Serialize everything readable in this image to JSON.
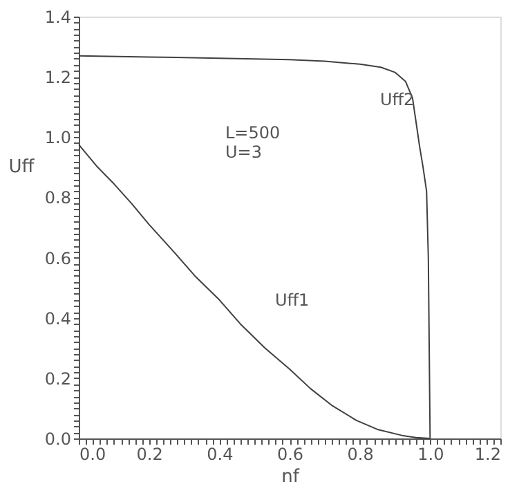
{
  "chart_data": {
    "type": "line",
    "xlabel": "nf",
    "ylabel": "Uff",
    "xlim": [
      0,
      1.2
    ],
    "ylim": [
      0,
      1.4
    ],
    "grid": false,
    "legend": false,
    "marker": "none",
    "line_style": "solid",
    "xticks": [
      {
        "value": 0,
        "label": "0.0"
      },
      {
        "value": 0.02,
        "label": null
      },
      {
        "value": 0.04,
        "label": null
      },
      {
        "value": 0.06,
        "label": null
      },
      {
        "value": 0.08,
        "label": null
      },
      {
        "value": 0.1,
        "label": null
      },
      {
        "value": 0.12,
        "label": null
      },
      {
        "value": 0.14,
        "label": null
      },
      {
        "value": 0.16,
        "label": null
      },
      {
        "value": 0.18,
        "label": null
      },
      {
        "value": 0.2,
        "label": "0.2"
      },
      {
        "value": 0.22,
        "label": null
      },
      {
        "value": 0.24,
        "label": null
      },
      {
        "value": 0.26,
        "label": null
      },
      {
        "value": 0.28,
        "label": null
      },
      {
        "value": 0.3,
        "label": null
      },
      {
        "value": 0.32,
        "label": null
      },
      {
        "value": 0.34,
        "label": null
      },
      {
        "value": 0.36,
        "label": null
      },
      {
        "value": 0.38,
        "label": null
      },
      {
        "value": 0.4,
        "label": "0.4"
      },
      {
        "value": 0.42,
        "label": null
      },
      {
        "value": 0.44,
        "label": null
      },
      {
        "value": 0.46,
        "label": null
      },
      {
        "value": 0.48,
        "label": null
      },
      {
        "value": 0.5,
        "label": null
      },
      {
        "value": 0.52,
        "label": null
      },
      {
        "value": 0.54,
        "label": null
      },
      {
        "value": 0.56,
        "label": null
      },
      {
        "value": 0.58,
        "label": null
      },
      {
        "value": 0.6,
        "label": "0.6"
      },
      {
        "value": 0.62,
        "label": null
      },
      {
        "value": 0.64,
        "label": null
      },
      {
        "value": 0.66,
        "label": null
      },
      {
        "value": 0.68,
        "label": null
      },
      {
        "value": 0.7,
        "label": null
      },
      {
        "value": 0.72,
        "label": null
      },
      {
        "value": 0.74,
        "label": null
      },
      {
        "value": 0.76,
        "label": null
      },
      {
        "value": 0.78,
        "label": null
      },
      {
        "value": 0.8,
        "label": "0.8"
      },
      {
        "value": 0.82,
        "label": null
      },
      {
        "value": 0.84,
        "label": null
      },
      {
        "value": 0.86,
        "label": null
      },
      {
        "value": 0.88,
        "label": null
      },
      {
        "value": 0.9,
        "label": null
      },
      {
        "value": 0.92,
        "label": null
      },
      {
        "value": 0.94,
        "label": null
      },
      {
        "value": 0.96,
        "label": null
      },
      {
        "value": 0.98,
        "label": null
      },
      {
        "value": 1,
        "label": "1.0"
      },
      {
        "value": 1.02,
        "label": null
      },
      {
        "value": 1.04,
        "label": null
      },
      {
        "value": 1.06,
        "label": null
      },
      {
        "value": 1.08,
        "label": null
      },
      {
        "value": 1.1,
        "label": null
      },
      {
        "value": 1.12,
        "label": null
      },
      {
        "value": 1.14,
        "label": null
      },
      {
        "value": 1.16,
        "label": null
      },
      {
        "value": 1.18,
        "label": null
      },
      {
        "value": 1.2,
        "label": "1.2"
      }
    ],
    "yticks": [
      {
        "value": 0,
        "label": "0.0"
      },
      {
        "value": 0.02,
        "label": null
      },
      {
        "value": 0.04,
        "label": null
      },
      {
        "value": 0.06,
        "label": null
      },
      {
        "value": 0.08,
        "label": null
      },
      {
        "value": 0.1,
        "label": null
      },
      {
        "value": 0.12,
        "label": null
      },
      {
        "value": 0.14,
        "label": null
      },
      {
        "value": 0.16,
        "label": null
      },
      {
        "value": 0.18,
        "label": null
      },
      {
        "value": 0.2,
        "label": "0.2"
      },
      {
        "value": 0.22,
        "label": null
      },
      {
        "value": 0.24,
        "label": null
      },
      {
        "value": 0.26,
        "label": null
      },
      {
        "value": 0.28,
        "label": null
      },
      {
        "value": 0.3,
        "label": null
      },
      {
        "value": 0.32,
        "label": null
      },
      {
        "value": 0.34,
        "label": null
      },
      {
        "value": 0.36,
        "label": null
      },
      {
        "value": 0.38,
        "label": null
      },
      {
        "value": 0.4,
        "label": "0.4"
      },
      {
        "value": 0.42,
        "label": null
      },
      {
        "value": 0.44,
        "label": null
      },
      {
        "value": 0.46,
        "label": null
      },
      {
        "value": 0.48,
        "label": null
      },
      {
        "value": 0.5,
        "label": null
      },
      {
        "value": 0.52,
        "label": null
      },
      {
        "value": 0.54,
        "label": null
      },
      {
        "value": 0.56,
        "label": null
      },
      {
        "value": 0.58,
        "label": null
      },
      {
        "value": 0.6,
        "label": "0.6"
      },
      {
        "value": 0.62,
        "label": null
      },
      {
        "value": 0.64,
        "label": null
      },
      {
        "value": 0.66,
        "label": null
      },
      {
        "value": 0.68,
        "label": null
      },
      {
        "value": 0.7,
        "label": null
      },
      {
        "value": 0.72,
        "label": null
      },
      {
        "value": 0.74,
        "label": null
      },
      {
        "value": 0.76,
        "label": null
      },
      {
        "value": 0.78,
        "label": null
      },
      {
        "value": 0.8,
        "label": "0.8"
      },
      {
        "value": 0.82,
        "label": null
      },
      {
        "value": 0.84,
        "label": null
      },
      {
        "value": 0.86,
        "label": null
      },
      {
        "value": 0.88,
        "label": null
      },
      {
        "value": 0.9,
        "label": null
      },
      {
        "value": 0.92,
        "label": null
      },
      {
        "value": 0.94,
        "label": null
      },
      {
        "value": 0.96,
        "label": null
      },
      {
        "value": 0.98,
        "label": null
      },
      {
        "value": 1,
        "label": "1.0"
      },
      {
        "value": 1.02,
        "label": null
      },
      {
        "value": 1.04,
        "label": null
      },
      {
        "value": 1.06,
        "label": null
      },
      {
        "value": 1.08,
        "label": null
      },
      {
        "value": 1.1,
        "label": null
      },
      {
        "value": 1.12,
        "label": null
      },
      {
        "value": 1.14,
        "label": null
      },
      {
        "value": 1.16,
        "label": null
      },
      {
        "value": 1.18,
        "label": null
      },
      {
        "value": 1.2,
        "label": "1.2"
      },
      {
        "value": 1.22,
        "label": null
      },
      {
        "value": 1.24,
        "label": null
      },
      {
        "value": 1.26,
        "label": null
      },
      {
        "value": 1.28,
        "label": null
      },
      {
        "value": 1.3,
        "label": null
      },
      {
        "value": 1.32,
        "label": null
      },
      {
        "value": 1.34,
        "label": null
      },
      {
        "value": 1.36,
        "label": null
      },
      {
        "value": 1.38,
        "label": null
      },
      {
        "value": 1.4,
        "label": "1.4"
      }
    ],
    "series": [
      {
        "color": "#404040",
        "x": [
          0,
          0.05,
          0.1,
          0.15,
          0.2,
          0.27,
          0.33,
          0.4,
          0.46,
          0.53,
          0.6,
          0.66,
          0.72,
          0.79,
          0.85,
          0.92,
          0.96,
          1.0
        ],
        "values": [
          0.975,
          0.905,
          0.845,
          0.78,
          0.71,
          0.62,
          0.54,
          0.46,
          0.38,
          0.3,
          0.23,
          0.165,
          0.11,
          0.06,
          0.03,
          0.01,
          0.003,
          0
        ]
      },
      {
        "color": "#404040",
        "x": [
          0,
          0.2,
          0.4,
          0.6,
          0.7,
          0.8,
          0.86,
          0.9,
          0.93,
          0.95,
          0.96,
          0.97,
          0.98,
          0.99,
          0.995,
          1.0
        ],
        "values": [
          1.27,
          1.266,
          1.262,
          1.257,
          1.252,
          1.242,
          1.232,
          1.215,
          1.185,
          1.13,
          1.05,
          0.97,
          0.9,
          0.82,
          0.6,
          0
        ]
      }
    ],
    "annotations": [
      "Uff1",
      "Uff2",
      "L=500",
      "U=3"
    ]
  }
}
